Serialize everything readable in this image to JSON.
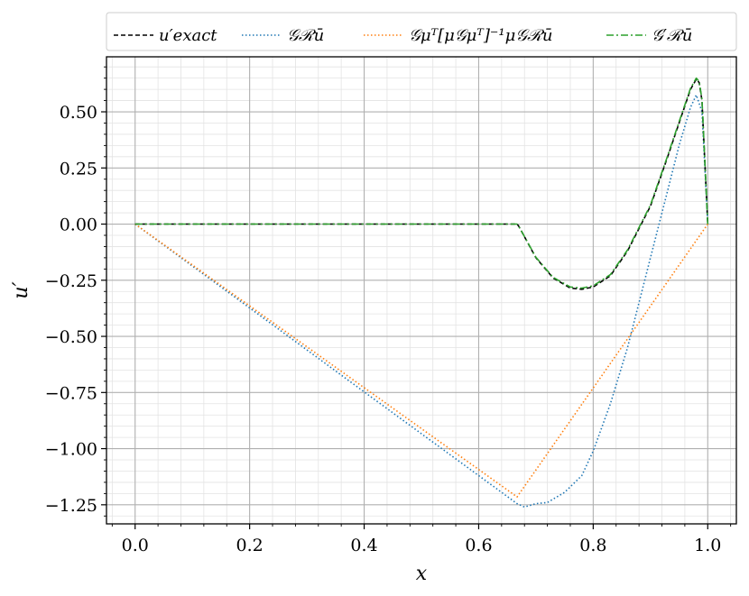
{
  "chart_data": {
    "type": "line",
    "xlabel": "x",
    "ylabel": "u′",
    "xlim": [
      -0.05,
      1.05
    ],
    "ylim": [
      -1.335,
      0.745
    ],
    "grid": true,
    "minor_grid": true,
    "legend_placement": "top, above plot",
    "xticks": [
      0.0,
      0.2,
      0.4,
      0.6,
      0.8,
      1.0
    ],
    "xtick_labels": [
      "0.0",
      "0.2",
      "0.4",
      "0.6",
      "0.8",
      "1.0"
    ],
    "yticks": [
      0.5,
      0.25,
      0.0,
      -0.25,
      -0.5,
      -0.75,
      -1.0,
      -1.25
    ],
    "ytick_labels": [
      "0.50",
      "0.25",
      "0.00",
      "−0.25",
      "−0.50",
      "−0.75",
      "−1.00",
      "−1.25"
    ],
    "series": [
      {
        "name": "u′exact",
        "color": "#000000",
        "style": "dashed",
        "x": [
          0.0,
          0.2,
          0.4,
          0.6,
          0.667,
          0.67,
          0.7,
          0.73,
          0.76,
          0.78,
          0.8,
          0.83,
          0.86,
          0.9,
          0.93,
          0.95,
          0.97,
          0.98,
          0.985,
          0.99,
          1.0
        ],
        "y": [
          0.0,
          0.0,
          0.0,
          0.0,
          0.0,
          -0.01,
          -0.15,
          -0.24,
          -0.285,
          -0.29,
          -0.28,
          -0.23,
          -0.12,
          0.08,
          0.3,
          0.45,
          0.6,
          0.645,
          0.63,
          0.55,
          0.0
        ]
      },
      {
        "name": "𝒢ℛū",
        "color": "#1f77b4",
        "style": "dotted",
        "x": [
          0.0,
          0.2,
          0.4,
          0.6,
          0.667,
          0.68,
          0.7,
          0.72,
          0.75,
          0.78,
          0.8,
          0.83,
          0.86,
          0.9,
          0.93,
          0.95,
          0.97,
          0.98,
          0.99,
          1.0
        ],
        "y": [
          0.0,
          -0.3735,
          -0.747,
          -1.12,
          -1.245,
          -1.26,
          -1.245,
          -1.24,
          -1.195,
          -1.12,
          -1.01,
          -0.8,
          -0.55,
          -0.15,
          0.15,
          0.35,
          0.52,
          0.575,
          0.5,
          0.0
        ]
      },
      {
        "name": "𝒢μᵀ[μ𝒢μᵀ]⁻¹μ𝒢ℛū",
        "color": "#ff7f0e",
        "style": "dotted",
        "x": [
          0.0,
          0.667,
          1.0
        ],
        "y": [
          0.0,
          -1.215,
          0.0
        ]
      },
      {
        "name": "𝒢′ℛū",
        "color": "#2ca02c",
        "style": "dashdot",
        "x": [
          0.0,
          0.2,
          0.4,
          0.6,
          0.667,
          0.67,
          0.7,
          0.73,
          0.76,
          0.78,
          0.8,
          0.83,
          0.86,
          0.9,
          0.93,
          0.95,
          0.97,
          0.98,
          0.985,
          0.99,
          1.0
        ],
        "y": [
          0.0,
          0.0,
          0.0,
          0.0,
          0.0,
          -0.01,
          -0.148,
          -0.237,
          -0.28,
          -0.285,
          -0.275,
          -0.225,
          -0.115,
          0.085,
          0.305,
          0.455,
          0.605,
          0.65,
          0.635,
          0.555,
          0.0
        ]
      }
    ]
  }
}
